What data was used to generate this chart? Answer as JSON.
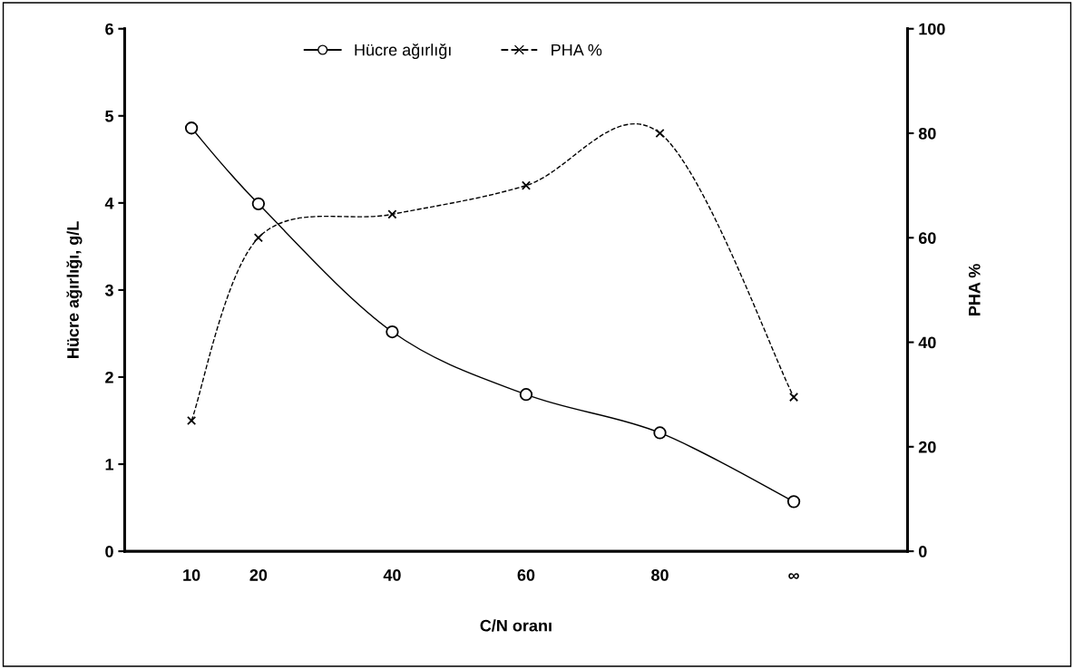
{
  "chart_data": {
    "type": "line",
    "xlabel": "C/N oranı",
    "ylabel": "Hücre ağırlığı, g/L",
    "y2label": "PHA %",
    "x": [
      10,
      20,
      40,
      60,
      80,
      100
    ],
    "xlim": [
      0,
      117
    ],
    "xticks": [
      10,
      20,
      40,
      60,
      80,
      {
        "value": 100,
        "label": "∞"
      }
    ],
    "ylim": [
      0,
      6
    ],
    "yticks": [
      0,
      1,
      2,
      3,
      4,
      5,
      6
    ],
    "y2lim": [
      0,
      100
    ],
    "y2ticks": [
      0,
      20,
      40,
      60,
      80,
      100
    ],
    "legend": "top",
    "grid": false,
    "series": [
      {
        "name": "Hücre ağırlığı",
        "color": "#000000",
        "values": [
          4.86,
          3.99,
          2.52,
          1.8,
          1.36,
          0.57
        ],
        "marker": "circle",
        "line_style": "solid"
      },
      {
        "name": "PHA %",
        "color": "#000000",
        "values": [
          25,
          60,
          64.5,
          70,
          80,
          29.5
        ],
        "axis": "y2",
        "marker": "cross",
        "line_style": "dashed"
      }
    ]
  }
}
